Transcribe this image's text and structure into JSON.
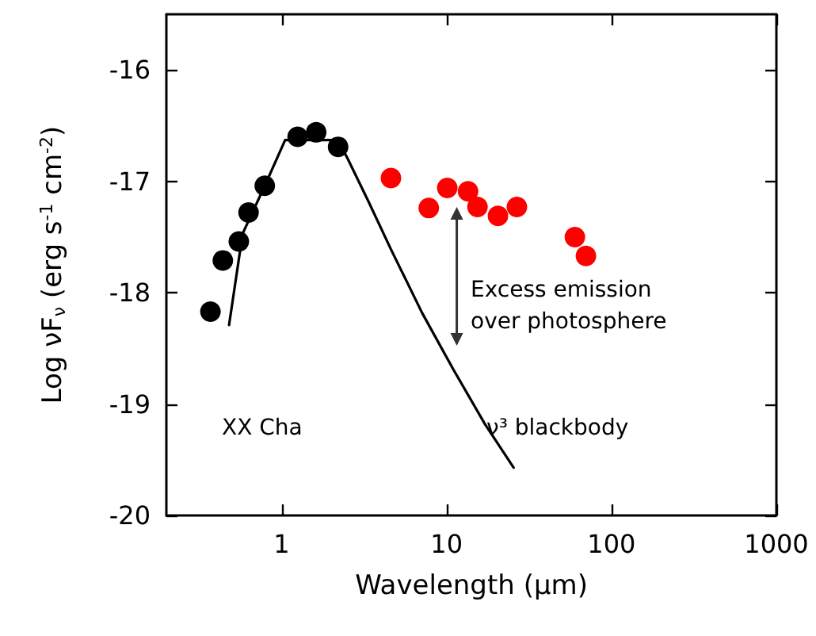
{
  "chart_data": {
    "type": "scatter",
    "xlabel": "Wavelength (μm)",
    "ylabel": "Log νF$_{ν}$ (erg s$^{-1}$ cm$^{-2}$)",
    "series": [
      {
        "type": "line",
        "color": "#000000",
        "marker": "none",
        "x": [
          0.48,
          0.58,
          0.79,
          1.05,
          2.2,
          2.52,
          3.36,
          4.6,
          7.1,
          11.0,
          17.1,
          25.5
        ],
        "values": [
          -18.29,
          -17.47,
          -17.04,
          -16.63,
          -16.63,
          -16.8,
          -17.18,
          -17.61,
          -18.18,
          -18.69,
          -19.18,
          -19.57
        ]
      },
      {
        "color": "#000000",
        "x": [
          0.37,
          0.44,
          0.55,
          0.63,
          0.79,
          1.25,
          1.62,
          2.2
        ],
        "values": [
          -18.17,
          -17.71,
          -17.54,
          -17.28,
          -17.04,
          -16.6,
          -16.56,
          -16.69
        ]
      },
      {
        "color": "#ff0000",
        "x": [
          4.6,
          7.8,
          10.1,
          13.5,
          15.4,
          20.5,
          26.7,
          60,
          70
        ],
        "values": [
          -16.97,
          -17.24,
          -17.06,
          -17.09,
          -17.23,
          -17.31,
          -17.23,
          -17.5,
          -17.67
        ]
      }
    ],
    "marker": "circle",
    "log": "x",
    "xlim": [
      0.2,
      1000
    ],
    "xticks": [
      1,
      10,
      100,
      1000
    ],
    "ylim": [
      -20,
      -15.5
    ],
    "yticks": [
      -20,
      -19,
      -18,
      -17,
      -16
    ],
    "annotations": [
      "Excess emission\nover photosphere",
      "ν³ blackbody",
      "XX Cha"
    ]
  }
}
